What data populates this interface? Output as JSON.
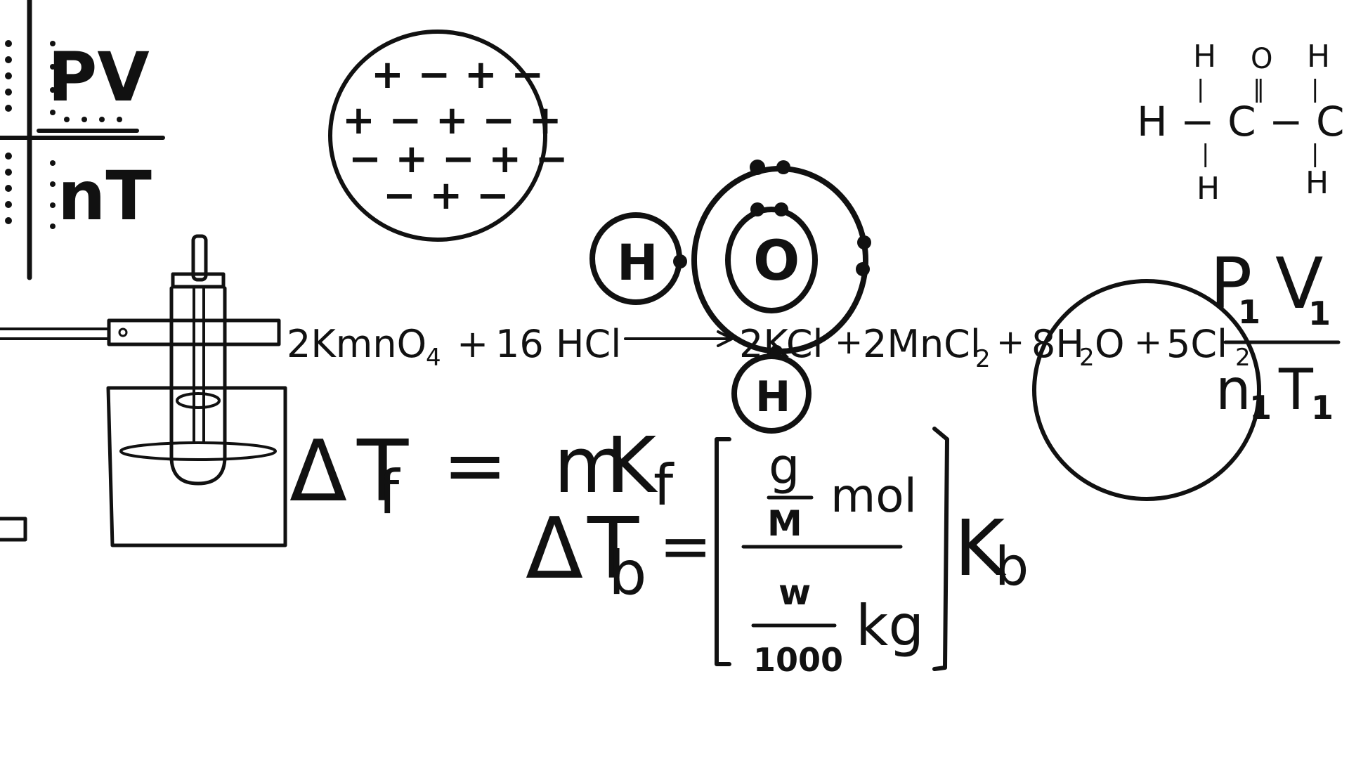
{
  "board": {
    "background": "#ffffff",
    "ink": "#111111"
  },
  "ideal_gas_fraction": {
    "numerator": "PV",
    "denominator": "nT"
  },
  "ion_lattice": {
    "row1": "+ − + −",
    "row2": "+ − + − +",
    "row3": "− + − + −",
    "row4": "− + −"
  },
  "water_molecule": {
    "oxygen": "O",
    "hydrogen_left": "H",
    "hydrogen_bottom": "H"
  },
  "acetone": {
    "top_h1": "H",
    "top_o": "O",
    "top_h2": "H",
    "bond_top1": "|",
    "bond_double": "‖",
    "bond_top2": "|",
    "main_chain": "H − C − C − C −",
    "bond_bottom1": "|",
    "bond_bottom2": "|",
    "bottom_h1": "H",
    "bottom_h2": "H"
  },
  "reaction": {
    "reactant_kmno4": "2KmnO",
    "reactant_kmno4_sub": "4",
    "reactant_plus": "+",
    "reactant_hcl": "16 HCl",
    "product_kcl": "2KCl",
    "plus1": "+",
    "product_mncl": "2MnCl",
    "product_mncl_sub": "2",
    "plus2": "+",
    "product_water": "8H",
    "product_water_sub": "2",
    "product_water_o": "O",
    "plus3": "+",
    "product_cl": "5Cl",
    "product_cl_sub": "2"
  },
  "freezing_point": {
    "delta": "Δ",
    "T": "T",
    "sub_f": "f",
    "equals": "=",
    "m": "m",
    "K": "K",
    "k_sub": "f"
  },
  "boiling_point": {
    "delta": "Δ",
    "T": "T",
    "sub_b": "b",
    "equals": "=",
    "g": "g",
    "M": "M",
    "mol": "mol",
    "w": "w",
    "thousand": "1000",
    "kg": "kg",
    "K": "K",
    "k_sub": "b"
  },
  "combined_gas": {
    "P": "P",
    "p_sub": "1",
    "V": "V",
    "v_sub": "1",
    "n": "n",
    "n_sub": "1",
    "T": "T",
    "t_sub": "1"
  }
}
